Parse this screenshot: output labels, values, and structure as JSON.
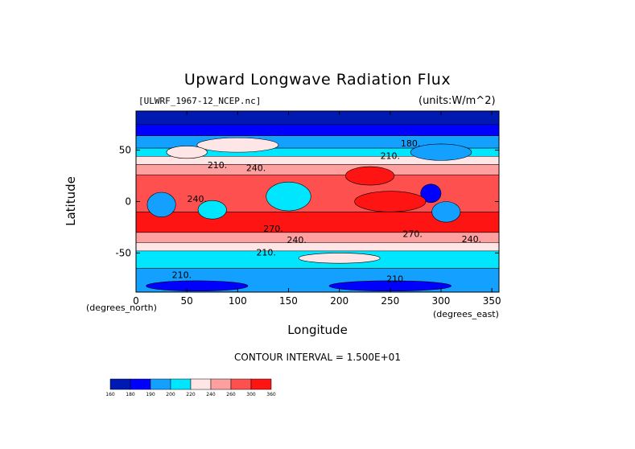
{
  "chart_data": {
    "type": "heatmap",
    "title": "Upward Longwave Radiation Flux",
    "file_label": "[ULWRF_1967-12_NCEP.nc]",
    "units_label": "(units:W/m^2)",
    "xlabel": "Longitude",
    "ylabel": "Latitude",
    "x_unit_label": "(degrees_east)",
    "y_unit_label": "(degrees_north)",
    "xlim": [
      0,
      357
    ],
    "ylim": [
      -88,
      88
    ],
    "x_ticks": [
      0,
      50,
      100,
      150,
      200,
      250,
      300,
      350
    ],
    "y_ticks": [
      50,
      0,
      -50
    ],
    "contour_interval_text": "CONTOUR INTERVAL = 1.500E+01",
    "contour_labels": [
      {
        "text": "180.",
        "lon": 270,
        "lat": 56
      },
      {
        "text": "210.",
        "lon": 250,
        "lat": 44
      },
      {
        "text": "240.",
        "lon": 118,
        "lat": 32
      },
      {
        "text": "210.",
        "lon": 80,
        "lat": 35
      },
      {
        "text": "240.",
        "lon": 60,
        "lat": 2
      },
      {
        "text": "270.",
        "lon": 135,
        "lat": -27
      },
      {
        "text": "240.",
        "lon": 158,
        "lat": -38
      },
      {
        "text": "270.",
        "lon": 272,
        "lat": -32
      },
      {
        "text": "240.",
        "lon": 330,
        "lat": -37
      },
      {
        "text": "210.",
        "lon": 128,
        "lat": -50
      },
      {
        "text": "210.",
        "lon": 45,
        "lat": -72
      },
      {
        "text": "210.",
        "lon": 256,
        "lat": -76
      }
    ],
    "colorbar": {
      "levels": [
        160,
        180,
        190,
        200,
        220,
        240,
        260,
        300,
        360
      ],
      "colors": [
        "#0019b3",
        "#0000ff",
        "#14a0ff",
        "#00e6ff",
        "#ffe6e6",
        "#ffa0a0",
        "#ff5050",
        "#ff1414"
      ]
    },
    "bands": [
      {
        "lat_top": 88,
        "lat_bottom": 75,
        "level": 0
      },
      {
        "lat_top": 75,
        "lat_bottom": 64,
        "level": 1
      },
      {
        "lat_top": 64,
        "lat_bottom": 52,
        "level": 2
      },
      {
        "lat_top": 52,
        "lat_bottom": 44,
        "level": 3
      },
      {
        "lat_top": 44,
        "lat_bottom": 36,
        "level": 4
      },
      {
        "lat_top": 36,
        "lat_bottom": 26,
        "level": 5
      },
      {
        "lat_top": 26,
        "lat_bottom": -10,
        "level": 6
      },
      {
        "lat_top": -10,
        "lat_bottom": -30,
        "level": 7
      },
      {
        "lat_top": -30,
        "lat_bottom": -40,
        "level": 5
      },
      {
        "lat_top": -40,
        "lat_bottom": -48,
        "level": 4
      },
      {
        "lat_top": -48,
        "lat_bottom": -65,
        "level": 3
      },
      {
        "lat_top": -65,
        "lat_bottom": -88,
        "level": 2
      }
    ],
    "patches": [
      {
        "lon": 150,
        "lat": 5,
        "rlon": 22,
        "rlat": 14,
        "level": 3
      },
      {
        "lon": 25,
        "lat": -3,
        "rlon": 14,
        "rlat": 12,
        "level": 2
      },
      {
        "lon": 75,
        "lat": -8,
        "rlon": 14,
        "rlat": 9,
        "level": 3
      },
      {
        "lon": 290,
        "lat": 8,
        "rlon": 10,
        "rlat": 9,
        "level": 1
      },
      {
        "lon": 305,
        "lat": -10,
        "rlon": 14,
        "rlat": 10,
        "level": 2
      },
      {
        "lon": 230,
        "lat": 25,
        "rlon": 24,
        "rlat": 9,
        "level": 7
      },
      {
        "lon": 250,
        "lat": 0,
        "rlon": 35,
        "rlat": 10,
        "level": 7
      },
      {
        "lon": 100,
        "lat": 55,
        "rlon": 40,
        "rlat": 7,
        "level": 4
      },
      {
        "lon": 50,
        "lat": 48,
        "rlon": 20,
        "rlat": 6,
        "level": 4
      },
      {
        "lon": 300,
        "lat": 48,
        "rlon": 30,
        "rlat": 8,
        "level": 2
      },
      {
        "lon": 200,
        "lat": -55,
        "rlon": 40,
        "rlat": 5,
        "level": 4
      },
      {
        "lon": 60,
        "lat": -82,
        "rlon": 50,
        "rlat": 5,
        "level": 1
      },
      {
        "lon": 250,
        "lat": -82,
        "rlon": 60,
        "rlat": 5,
        "level": 1
      }
    ]
  }
}
